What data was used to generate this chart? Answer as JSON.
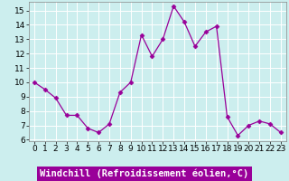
{
  "x": [
    0,
    1,
    2,
    3,
    4,
    5,
    6,
    7,
    8,
    9,
    10,
    11,
    12,
    13,
    14,
    15,
    16,
    17,
    18,
    19,
    20,
    21,
    22,
    23
  ],
  "y": [
    10.0,
    9.5,
    8.9,
    7.7,
    7.7,
    6.8,
    6.5,
    7.1,
    9.3,
    10.0,
    13.3,
    11.8,
    13.0,
    15.3,
    14.2,
    12.5,
    13.5,
    13.9,
    7.6,
    6.3,
    7.0,
    7.3,
    7.1,
    6.5
  ],
  "line_color": "#990099",
  "marker": "D",
  "marker_size": 2.5,
  "bg_color": "#cceeee",
  "grid_color": "#aadddd",
  "xlabel": "Windchill (Refroidissement éolien,°C)",
  "xlabel_color": "#990099",
  "xlabel_bg": "#990099",
  "ylim": [
    5.9,
    15.6
  ],
  "xlim": [
    -0.5,
    23.5
  ],
  "yticks": [
    6,
    7,
    8,
    9,
    10,
    11,
    12,
    13,
    14,
    15
  ],
  "xticks": [
    0,
    1,
    2,
    3,
    4,
    5,
    6,
    7,
    8,
    9,
    10,
    11,
    12,
    13,
    14,
    15,
    16,
    17,
    18,
    19,
    20,
    21,
    22,
    23
  ],
  "tick_label_size": 6.5,
  "xlabel_fontsize": 7.5,
  "spine_color": "#888888"
}
